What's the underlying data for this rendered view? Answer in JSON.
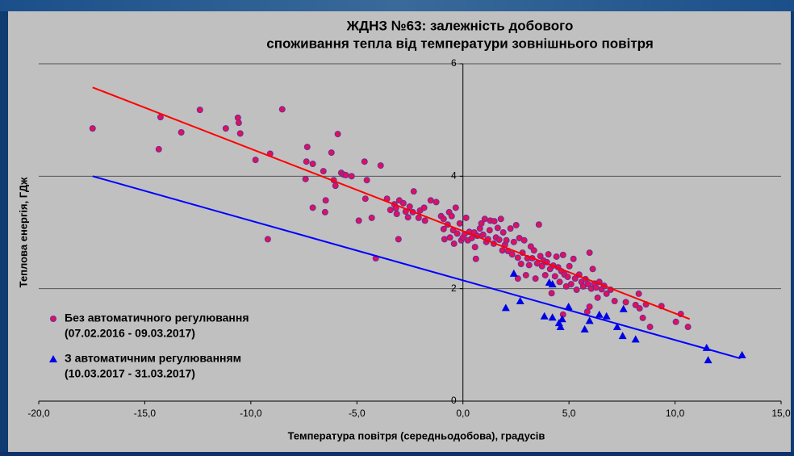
{
  "chart_data": {
    "type": "scatter",
    "title": [
      "ЖДНЗ №63: залежність добового",
      "споживання тепла від температури зовнішнього повітря"
    ],
    "x_label": "Температура повітря (середньодобова), градусів",
    "y_label": "Теплова енергія, ГДж",
    "xlim": [
      -20,
      15
    ],
    "ylim": [
      0,
      6
    ],
    "xticks": [
      {
        "value": -20,
        "label": "-20,0"
      },
      {
        "value": -15,
        "label": "-15,0"
      },
      {
        "value": -10,
        "label": "-10,0"
      },
      {
        "value": -5,
        "label": "-5,0"
      },
      {
        "value": 0,
        "label": "0,0"
      },
      {
        "value": 5,
        "label": "5,0"
      },
      {
        "value": 10,
        "label": "10,0"
      },
      {
        "value": 15,
        "label": "15,0"
      }
    ],
    "yticks": [
      0,
      2,
      4,
      6
    ],
    "grid": true,
    "legend": "lower left",
    "series": [
      {
        "name": "Без автоматичного регулювання",
        "note": "(07.02.2016 - 09.03.2017)",
        "color": "#e0105a",
        "marker": "circle",
        "x": [
          -17.46,
          -14.34,
          -14.26,
          -13.28,
          -12.4,
          -11.18,
          -10.61,
          -10.57,
          -10.5,
          -9.78,
          -9.09,
          -9.2,
          -8.52,
          -7.34,
          -7.38,
          -7.42,
          -7.08,
          -7.08,
          -6.58,
          -6.47,
          -6.5,
          -6.2,
          -6.09,
          -6.01,
          -5.9,
          -5.74,
          -5.63,
          -5.52,
          -5.25,
          -4.91,
          -4.64,
          -4.6,
          -4.53,
          -4.3,
          -4.11,
          -3.88,
          -3.58,
          -3.42,
          -3.23,
          -3.16,
          -3.12,
          -3.04,
          -3.0,
          -2.81,
          -2.7,
          -2.59,
          -2.51,
          -2.36,
          -2.32,
          -2.09,
          -2.02,
          -1.83,
          -1.79,
          -1.52,
          -1.26,
          -1.03,
          -0.91,
          -0.91,
          -0.87,
          -0.72,
          -0.65,
          -0.61,
          -0.53,
          -0.46,
          -0.42,
          -0.34,
          -0.27,
          -0.15,
          -0.08,
          0.0,
          0.08,
          0.15,
          0.23,
          0.3,
          0.42,
          0.53,
          0.57,
          0.61,
          0.68,
          0.8,
          0.87,
          0.95,
          1.03,
          1.1,
          1.18,
          1.26,
          1.29,
          1.45,
          1.48,
          1.56,
          1.64,
          1.71,
          1.79,
          1.86,
          1.9,
          1.98,
          2.05,
          2.13,
          2.24,
          2.32,
          2.4,
          2.51,
          2.59,
          2.59,
          2.66,
          2.74,
          2.81,
          2.89,
          2.97,
          3.04,
          3.12,
          3.2,
          3.27,
          3.35,
          3.42,
          3.5,
          3.58,
          3.65,
          3.73,
          3.8,
          3.88,
          3.96,
          4.03,
          4.11,
          4.18,
          4.26,
          4.34,
          4.41,
          4.49,
          4.56,
          4.64,
          4.72,
          4.72,
          4.79,
          4.87,
          4.94,
          5.02,
          5.1,
          5.21,
          5.29,
          5.36,
          5.48,
          5.59,
          5.67,
          5.78,
          5.86,
          5.9,
          5.97,
          5.97,
          6.05,
          6.12,
          6.2,
          6.28,
          6.35,
          6.43,
          6.54,
          6.66,
          6.77,
          6.96,
          7.15,
          7.68,
          8.14,
          8.29,
          8.33,
          8.48,
          8.63,
          8.82,
          9.36,
          10.04,
          10.27,
          10.61
        ],
        "values": [
          4.85,
          4.48,
          5.05,
          4.78,
          5.18,
          4.85,
          5.04,
          4.95,
          4.76,
          4.29,
          4.4,
          2.88,
          5.19,
          4.52,
          4.26,
          3.95,
          4.22,
          3.44,
          4.09,
          3.57,
          3.36,
          4.42,
          3.93,
          3.83,
          4.75,
          4.06,
          4.03,
          4.02,
          4.0,
          3.21,
          4.26,
          3.6,
          3.93,
          3.26,
          2.54,
          4.19,
          3.6,
          3.4,
          3.5,
          3.43,
          3.33,
          2.88,
          3.57,
          3.52,
          3.37,
          3.27,
          3.46,
          3.36,
          3.73,
          3.26,
          3.39,
          3.44,
          3.21,
          3.57,
          3.54,
          3.29,
          3.24,
          3.06,
          2.88,
          3.14,
          3.36,
          2.91,
          3.29,
          3.04,
          2.8,
          3.44,
          2.98,
          3.16,
          2.86,
          2.91,
          2.97,
          3.26,
          2.86,
          3.01,
          2.9,
          3.0,
          2.74,
          2.53,
          2.94,
          3.07,
          3.16,
          2.96,
          3.24,
          2.83,
          2.88,
          3.04,
          3.21,
          2.8,
          3.2,
          2.91,
          3.08,
          2.87,
          3.24,
          2.68,
          3.0,
          2.78,
          2.86,
          2.67,
          3.07,
          2.61,
          2.83,
          3.13,
          2.55,
          2.18,
          2.9,
          2.44,
          2.64,
          2.86,
          2.24,
          2.54,
          2.42,
          2.75,
          2.54,
          2.68,
          2.18,
          2.45,
          3.14,
          2.58,
          2.4,
          2.5,
          2.24,
          2.47,
          2.61,
          2.35,
          1.92,
          2.41,
          2.22,
          2.57,
          2.38,
          2.12,
          2.31,
          2.6,
          1.54,
          2.25,
          2.04,
          2.21,
          2.4,
          2.08,
          2.53,
          2.18,
          1.98,
          2.25,
          2.12,
          2.04,
          2.17,
          1.59,
          2.08,
          2.64,
          1.68,
          2.0,
          2.35,
          2.09,
          2.02,
          1.84,
          2.12,
          1.99,
          2.05,
          1.91,
          1.98,
          1.78,
          1.76,
          1.71,
          1.91,
          1.65,
          1.48,
          1.72,
          1.32,
          1.69,
          1.41,
          1.55,
          1.32
        ]
      },
      {
        "name": "З автоматичним регулюванням",
        "note": "(10.03.2017 - 31.03.2017)",
        "color": "#0000e6",
        "marker": "triangle",
        "x": [
          2.02,
          2.7,
          2.4,
          3.84,
          4.07,
          4.22,
          4.22,
          4.53,
          4.68,
          4.6,
          4.98,
          5.74,
          5.97,
          6.43,
          6.77,
          7.27,
          7.53,
          7.57,
          8.14,
          11.49,
          11.56,
          13.16
        ],
        "values": [
          1.66,
          1.78,
          2.27,
          1.51,
          2.11,
          2.08,
          1.49,
          1.39,
          1.46,
          1.32,
          1.68,
          1.28,
          1.43,
          1.54,
          1.51,
          1.32,
          1.16,
          1.64,
          1.1,
          0.95,
          0.73,
          0.82
        ]
      }
    ],
    "trendlines": [
      {
        "color": "#ff0000",
        "x": [
          -17.46,
          10.69
        ],
        "values": [
          5.58,
          1.46
        ]
      },
      {
        "color": "#0000ff",
        "x": [
          -17.46,
          13.08
        ],
        "values": [
          4.0,
          0.76
        ]
      }
    ]
  }
}
